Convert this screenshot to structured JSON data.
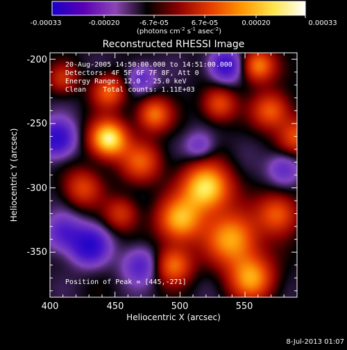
{
  "colorbar": {
    "tick_labels": [
      "-0.00033",
      "-0.00020",
      "-6.7e-05",
      "6.7e-05",
      "0.00020",
      "0.00033"
    ],
    "unit_label": "(photons cm",
    "unit_exp1": "-2",
    "unit_mid": " s",
    "unit_exp2": "-1",
    "unit_mid2": " asec",
    "unit_exp3": "-2",
    "unit_end": ")",
    "colors": [
      "#1a00c8",
      "#5a00b4",
      "#8c46b4",
      "#000000",
      "#8c0000",
      "#e63c00",
      "#ff9600",
      "#ffe64b",
      "#ffffff"
    ]
  },
  "chart_data": {
    "type": "heatmap",
    "title": "Reconstructed RHESSI Image",
    "xlabel": "Heliocentric X (arcsec)",
    "ylabel": "Heliocentric Y (arcsec)",
    "xlim": [
      400,
      590
    ],
    "ylim": [
      -385,
      -195
    ],
    "x_ticks": [
      400,
      450,
      500,
      550
    ],
    "y_ticks": [
      -200,
      -250,
      -300,
      -350
    ],
    "peak_position": [
      445,
      -271
    ],
    "blobs": [
      {
        "x": 445,
        "y": -262,
        "amp": 1.0,
        "r": 10
      },
      {
        "x": 445,
        "y": -225,
        "amp": 0.55,
        "r": 9
      },
      {
        "x": 480,
        "y": -243,
        "amp": 0.6,
        "r": 9
      },
      {
        "x": 520,
        "y": -300,
        "amp": 0.95,
        "r": 13
      },
      {
        "x": 500,
        "y": -325,
        "amp": 0.75,
        "r": 12
      },
      {
        "x": 540,
        "y": -340,
        "amp": 0.75,
        "r": 14
      },
      {
        "x": 555,
        "y": -370,
        "amp": 0.7,
        "r": 12
      },
      {
        "x": 495,
        "y": -360,
        "amp": 0.6,
        "r": 10
      },
      {
        "x": 470,
        "y": -280,
        "amp": 0.5,
        "r": 11
      },
      {
        "x": 575,
        "y": -320,
        "amp": 0.55,
        "r": 11
      },
      {
        "x": 560,
        "y": -205,
        "amp": 0.65,
        "r": 9
      },
      {
        "x": 570,
        "y": -240,
        "amp": 0.55,
        "r": 10
      },
      {
        "x": 530,
        "y": -235,
        "amp": 0.5,
        "r": 9
      },
      {
        "x": 590,
        "y": -260,
        "amp": 0.5,
        "r": 10
      },
      {
        "x": 455,
        "y": -320,
        "amp": 0.4,
        "r": 9
      },
      {
        "x": 410,
        "y": -215,
        "amp": 0.35,
        "r": 8
      },
      {
        "x": 425,
        "y": -300,
        "amp": 0.45,
        "r": 10
      },
      {
        "x": 405,
        "y": -262,
        "amp": -0.6,
        "r": 10
      },
      {
        "x": 430,
        "y": -345,
        "amp": -0.6,
        "r": 10
      },
      {
        "x": 535,
        "y": -205,
        "amp": -0.55,
        "r": 9
      },
      {
        "x": 470,
        "y": -215,
        "amp": -0.35,
        "r": 8
      },
      {
        "x": 410,
        "y": -335,
        "amp": -0.4,
        "r": 10
      },
      {
        "x": 470,
        "y": -360,
        "amp": -0.4,
        "r": 10
      },
      {
        "x": 580,
        "y": -285,
        "amp": -0.35,
        "r": 9
      },
      {
        "x": 515,
        "y": -268,
        "amp": -0.3,
        "r": 8
      }
    ]
  },
  "annotations": {
    "line1": "20-Aug-2005 14:50:00.000 to 14:51:00.000",
    "line2": "Detectors: 4F 5F 6F 7F 8F, Att 0",
    "line3": "Energy Range: 12.0 - 25.0 keV",
    "line4": "Clean    Total counts: 1.11E+03",
    "peak": "Position of Peak = [445,-271]"
  },
  "footer": {
    "date": "8-Jul-2013 01:07"
  }
}
